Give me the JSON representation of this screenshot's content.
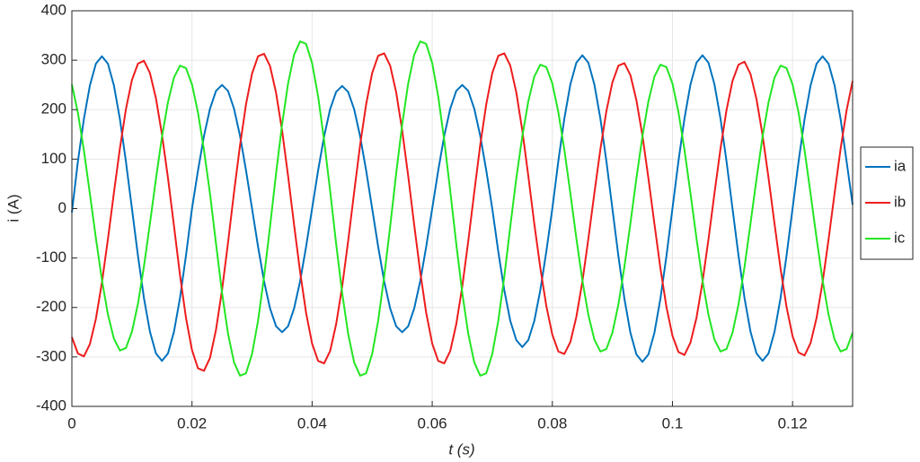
{
  "chart_data": {
    "type": "line",
    "xlabel": "t (s)",
    "ylabel": "i (A)",
    "x": [
      0,
      0.001,
      0.002,
      0.003,
      0.004,
      0.005,
      0.006,
      0.007,
      0.008,
      0.009,
      0.01,
      0.011,
      0.012,
      0.013,
      0.014,
      0.015,
      0.016,
      0.017,
      0.018,
      0.019,
      0.02,
      0.021,
      0.022,
      0.023,
      0.024,
      0.025,
      0.026,
      0.027,
      0.028,
      0.029,
      0.03,
      0.031,
      0.032,
      0.033,
      0.034,
      0.035,
      0.036,
      0.037,
      0.038,
      0.039,
      0.04,
      0.041,
      0.042,
      0.043,
      0.044,
      0.045,
      0.046,
      0.047,
      0.048,
      0.049,
      0.05,
      0.051,
      0.052,
      0.053,
      0.054,
      0.055,
      0.056,
      0.057,
      0.058,
      0.059,
      0.06,
      0.061,
      0.062,
      0.063,
      0.064,
      0.065,
      0.066,
      0.067,
      0.068,
      0.069,
      0.07,
      0.071,
      0.072,
      0.073,
      0.074,
      0.075,
      0.076,
      0.077,
      0.078,
      0.079,
      0.08,
      0.081,
      0.082,
      0.083,
      0.084,
      0.085,
      0.086,
      0.087,
      0.088,
      0.089,
      0.09,
      0.091,
      0.092,
      0.093,
      0.094,
      0.095,
      0.096,
      0.097,
      0.098,
      0.099,
      0.1,
      0.101,
      0.102,
      0.103,
      0.104,
      0.105,
      0.106,
      0.107,
      0.108,
      0.109,
      0.11,
      0.111,
      0.112,
      0.113,
      0.114,
      0.115,
      0.116,
      0.117,
      0.118,
      0.119,
      0.12,
      0.121,
      0.122,
      0.123,
      0.124,
      0.125,
      0.126,
      0.127,
      0.128,
      0.129,
      0.13
    ],
    "series": [
      {
        "name": "ia",
        "color": "#0072bd",
        "values": [
          -8,
          95,
          181,
          249,
          293,
          308,
          293,
          249,
          181,
          95,
          0,
          -95,
          -181,
          -249,
          -293,
          -308,
          -293,
          -249,
          -181,
          -95,
          0,
          77,
          147,
          202,
          238,
          250,
          238,
          202,
          147,
          77,
          0,
          -77,
          -147,
          -202,
          -238,
          -250,
          -238,
          -202,
          -147,
          -77,
          0,
          77,
          146,
          201,
          236,
          248,
          236,
          201,
          146,
          77,
          0,
          -77,
          -147,
          -202,
          -238,
          -250,
          -238,
          -202,
          -147,
          -77,
          0,
          77,
          147,
          202,
          238,
          250,
          238,
          202,
          147,
          77,
          0,
          -87,
          -165,
          -227,
          -266,
          -280,
          -266,
          -227,
          -165,
          -87,
          0,
          96,
          182,
          251,
          295,
          310,
          295,
          251,
          182,
          96,
          0,
          -96,
          -182,
          -251,
          -295,
          -310,
          -295,
          -251,
          -182,
          -96,
          0,
          96,
          182,
          251,
          295,
          310,
          295,
          251,
          182,
          96,
          0,
          -95,
          -181,
          -249,
          -293,
          -308,
          -293,
          -249,
          -181,
          -95,
          0,
          95,
          181,
          249,
          293,
          308,
          293,
          249,
          181,
          95,
          8
        ]
      },
      {
        "name": "ib",
        "color": "#ee1c1c",
        "values": [
          -260,
          -293,
          -299,
          -274,
          -223,
          -150,
          -62,
          32,
          122,
          201,
          260,
          293,
          299,
          274,
          223,
          150,
          62,
          -35,
          -134,
          -221,
          -286,
          -323,
          -328,
          -302,
          -245,
          -165,
          -69,
          33,
          128,
          211,
          273,
          308,
          313,
          288,
          234,
          158,
          66,
          -33,
          -128,
          -211,
          -273,
          -308,
          -313,
          -288,
          -234,
          -158,
          -66,
          33,
          129,
          211,
          274,
          309,
          314,
          289,
          235,
          158,
          66,
          -33,
          -128,
          -211,
          -273,
          -308,
          -313,
          -288,
          -234,
          -158,
          -66,
          33,
          129,
          211,
          274,
          309,
          314,
          289,
          235,
          158,
          66,
          -31,
          -120,
          -197,
          -255,
          -289,
          -294,
          -270,
          -219,
          -148,
          -61,
          31,
          120,
          197,
          255,
          289,
          294,
          270,
          219,
          148,
          61,
          -31,
          -121,
          -199,
          -257,
          -290,
          -296,
          -271,
          -221,
          -149,
          -62,
          31,
          121,
          199,
          258,
          291,
          297,
          272,
          221,
          149,
          62,
          -31,
          -121,
          -199,
          -258,
          -291,
          -297,
          -272,
          -221,
          -149,
          -62,
          31,
          121,
          199,
          258
        ]
      },
      {
        "name": "ic",
        "color": "#22e622",
        "values": [
          251,
          194,
          118,
          30,
          -60,
          -144,
          -214,
          -263,
          -287,
          -282,
          -249,
          -193,
          -117,
          -30,
          60,
          145,
          215,
          265,
          289,
          284,
          251,
          194,
          118,
          30,
          -71,
          -170,
          -253,
          -311,
          -338,
          -333,
          -294,
          -227,
          -138,
          -36,
          71,
          170,
          253,
          311,
          338,
          333,
          294,
          227,
          138,
          36,
          -71,
          -170,
          -253,
          -311,
          -338,
          -333,
          -294,
          -227,
          -138,
          -36,
          71,
          170,
          253,
          311,
          338,
          333,
          294,
          227,
          138,
          36,
          -71,
          -170,
          -253,
          -311,
          -338,
          -333,
          -294,
          -227,
          -138,
          -36,
          61,
          146,
          217,
          267,
          291,
          286,
          253,
          195,
          119,
          31,
          -60,
          -145,
          -215,
          -265,
          -289,
          -284,
          -251,
          -194,
          -118,
          -30,
          61,
          146,
          217,
          267,
          291,
          286,
          253,
          195,
          119,
          31,
          -60,
          -145,
          -215,
          -265,
          -289,
          -284,
          -251,
          -194,
          -118,
          -30,
          60,
          145,
          215,
          265,
          289,
          284,
          251,
          194,
          118,
          30,
          -60,
          -145,
          -215,
          -265,
          -289,
          -284,
          -251
        ]
      }
    ],
    "xlim": [
      0,
      0.13
    ],
    "ylim": [
      -400,
      400
    ],
    "xticks": [
      0,
      0.02,
      0.04,
      0.06,
      0.08,
      0.1,
      0.12
    ],
    "yticks": [
      -400,
      -300,
      -200,
      -100,
      0,
      100,
      200,
      300,
      400
    ],
    "grid": true,
    "legend": "right"
  }
}
